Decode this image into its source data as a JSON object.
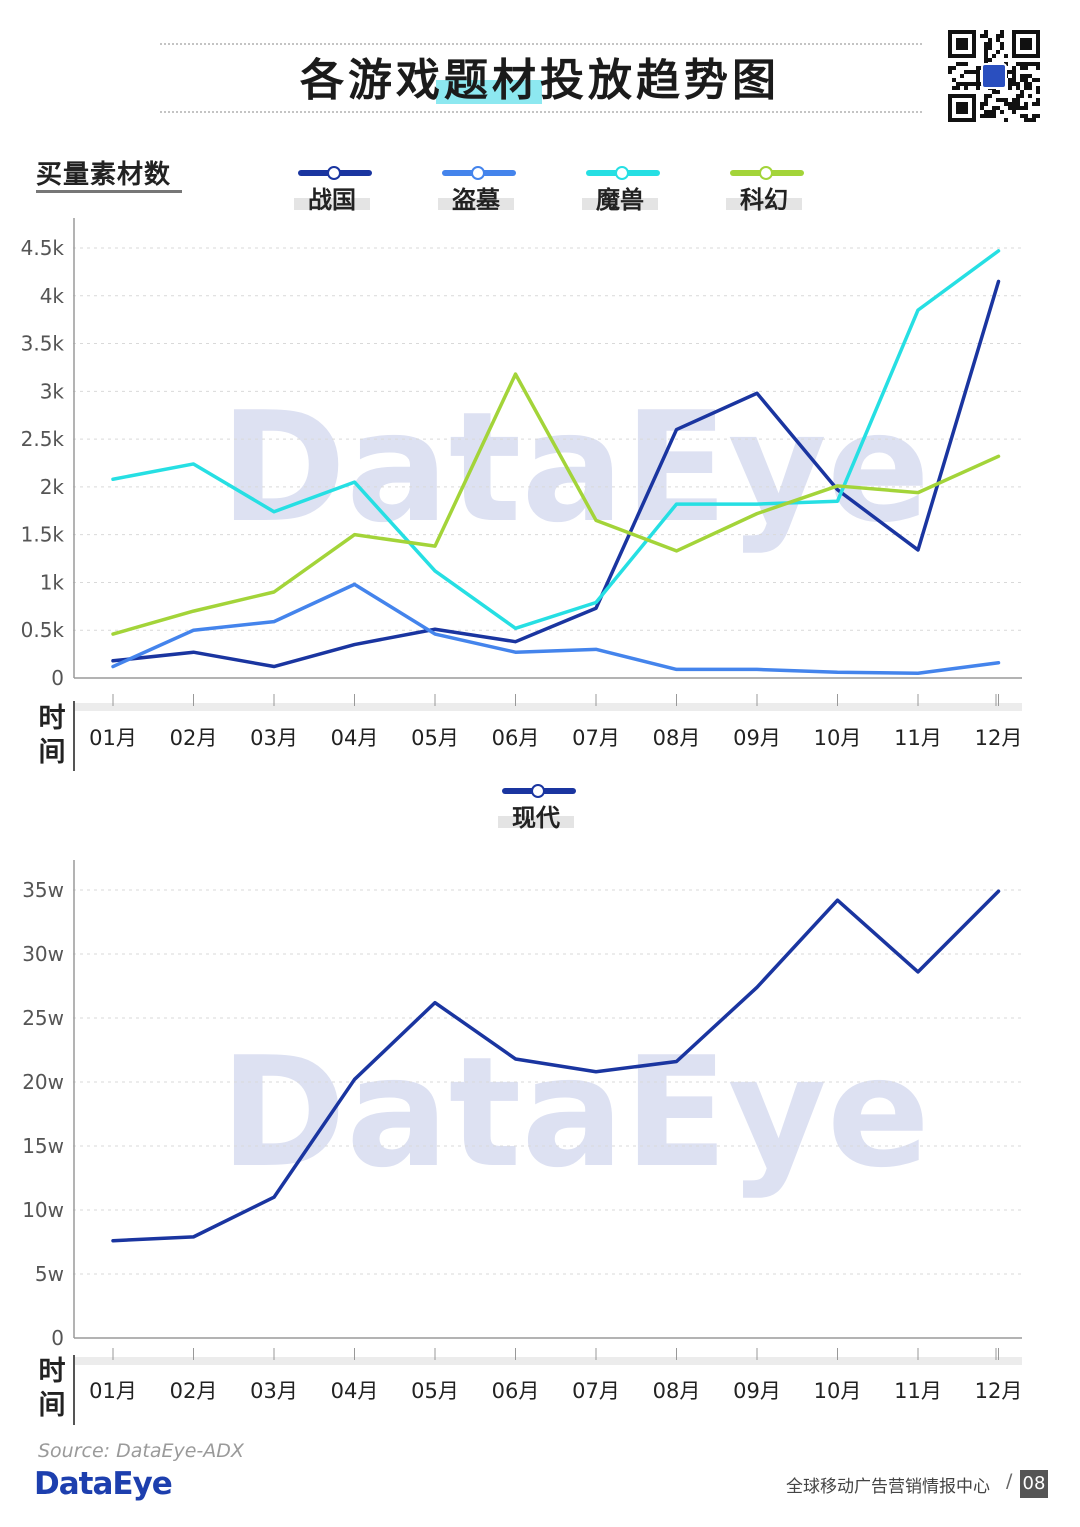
{
  "title": "各游戏题材投放趋势图",
  "top_ylabel": "买量素材数",
  "time_label_chars": [
    "时",
    "间"
  ],
  "watermark": "DataEye",
  "footer": {
    "source": "Source: DataEye-ADX",
    "brand": "DataEye",
    "text": "全球移动广告营销情报中心",
    "slash": "/",
    "page": "08"
  },
  "colors": {
    "zhanguo": "#1a35a0",
    "daomu": "#4484ec",
    "moshou": "#26dfe3",
    "kehuan": "#a3d439",
    "xiandai": "#1a35a0"
  },
  "chart_data": [
    {
      "type": "line",
      "ylabel": "买量素材数",
      "xlabel": "时间",
      "categories": [
        "01月",
        "02月",
        "03月",
        "04月",
        "05月",
        "06月",
        "07月",
        "08月",
        "09月",
        "10月",
        "11月",
        "12月"
      ],
      "y_ticks": [
        "0",
        "0.5k",
        "1k",
        "1.5k",
        "2k",
        "2.5k",
        "3k",
        "3.5k",
        "4k",
        "4.5k"
      ],
      "ylim": [
        0,
        4500
      ],
      "grid": true,
      "legend_position": "top",
      "series": [
        {
          "name": "战国",
          "key": "zhanguo",
          "values": [
            180,
            270,
            120,
            350,
            510,
            380,
            730,
            2600,
            2980,
            1970,
            1340,
            4150
          ]
        },
        {
          "name": "盗墓",
          "key": "daomu",
          "values": [
            120,
            500,
            590,
            980,
            460,
            270,
            300,
            90,
            90,
            60,
            50,
            160
          ]
        },
        {
          "name": "魔兽",
          "key": "moshou",
          "values": [
            2080,
            2240,
            1740,
            2050,
            1120,
            520,
            790,
            1820,
            1820,
            1850,
            3850,
            4470
          ]
        },
        {
          "name": "科幻",
          "key": "kehuan",
          "values": [
            460,
            700,
            900,
            1500,
            1380,
            3180,
            1650,
            1330,
            1720,
            2010,
            1940,
            2320
          ]
        }
      ]
    },
    {
      "type": "line",
      "xlabel": "时间",
      "categories": [
        "01月",
        "02月",
        "03月",
        "04月",
        "05月",
        "06月",
        "07月",
        "08月",
        "09月",
        "10月",
        "11月",
        "12月"
      ],
      "y_ticks": [
        "0",
        "5w",
        "10w",
        "15w",
        "20w",
        "25w",
        "30w",
        "35w"
      ],
      "ylim": [
        0,
        35
      ],
      "grid": true,
      "legend_position": "top",
      "series": [
        {
          "name": "现代",
          "key": "xiandai",
          "values": [
            7.6,
            7.9,
            11.0,
            20.2,
            26.2,
            21.8,
            20.8,
            21.6,
            27.4,
            34.2,
            28.6,
            34.9
          ]
        }
      ]
    }
  ]
}
